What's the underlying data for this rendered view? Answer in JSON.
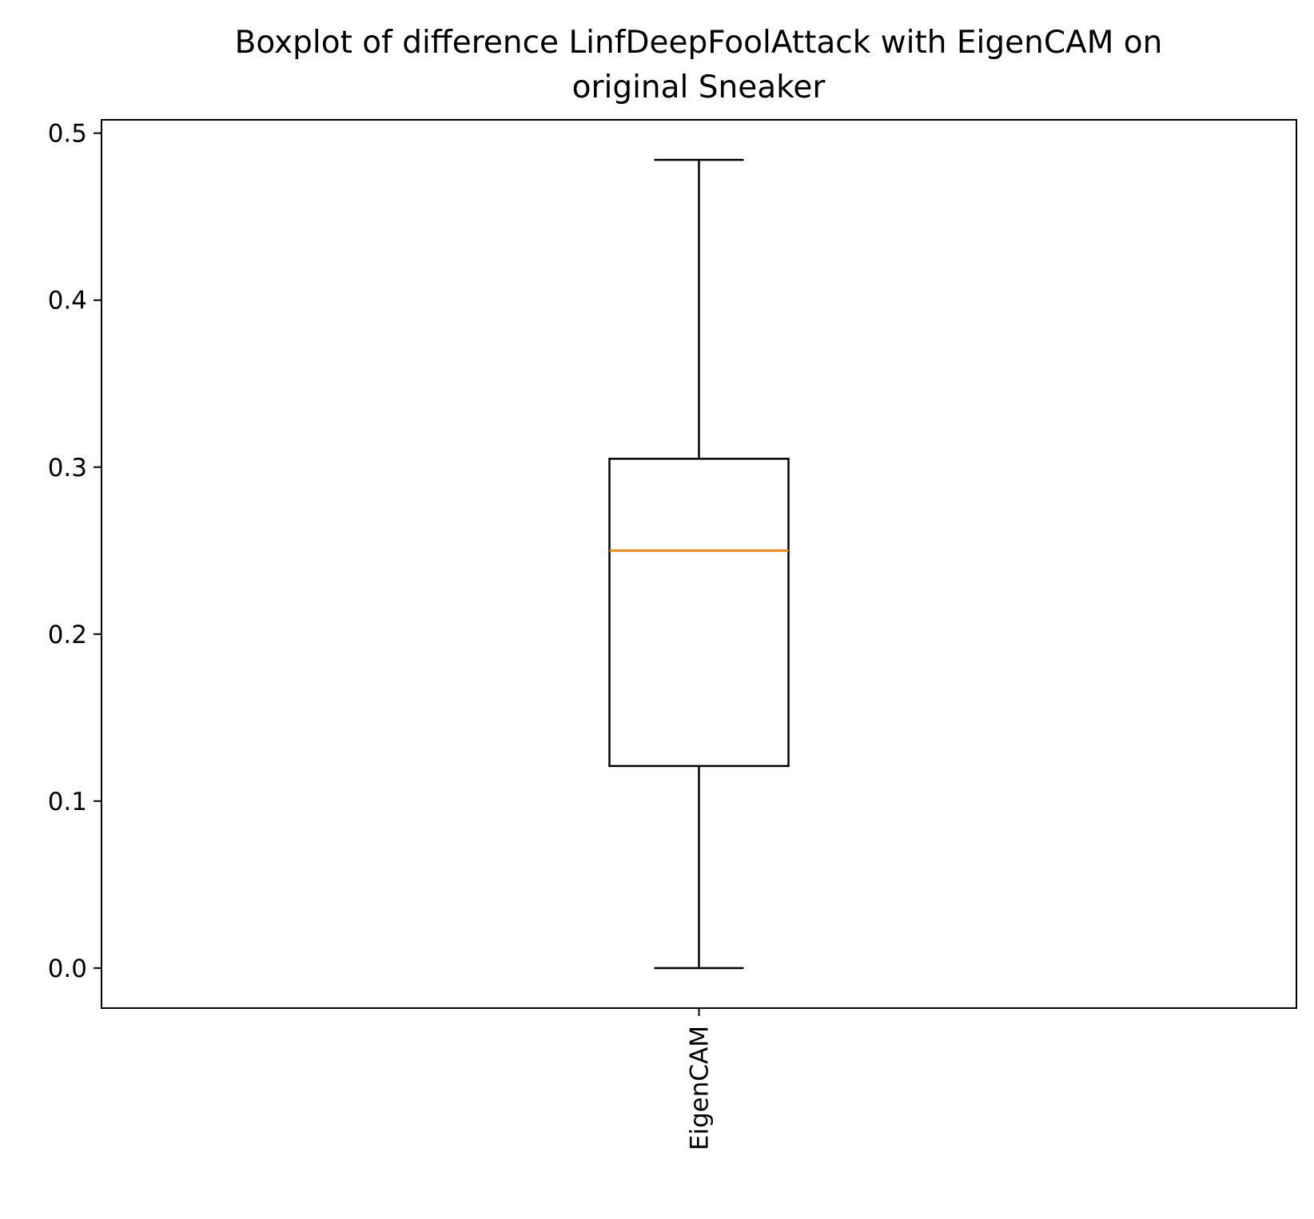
{
  "chart_data": {
    "type": "boxplot",
    "title_lines": [
      "Boxplot of difference LinfDeepFoolAttack with EigenCAM on",
      "original Sneaker"
    ],
    "xlabel": "",
    "ylabel": "",
    "categories": [
      "EigenCAM"
    ],
    "boxes": [
      {
        "category": "EigenCAM",
        "whisker_low": 0.0,
        "q1": 0.121,
        "median": 0.25,
        "q3": 0.305,
        "whisker_high": 0.484
      }
    ],
    "ylim": [
      -0.024,
      0.508
    ],
    "yticks": [
      0.0,
      0.1,
      0.2,
      0.3,
      0.4,
      0.5
    ],
    "ytick_labels": [
      "0.0",
      "0.1",
      "0.2",
      "0.3",
      "0.4",
      "0.5"
    ],
    "grid": false,
    "colors": {
      "box": "#000000",
      "median": "#e8871e",
      "background": "#ffffff"
    }
  }
}
